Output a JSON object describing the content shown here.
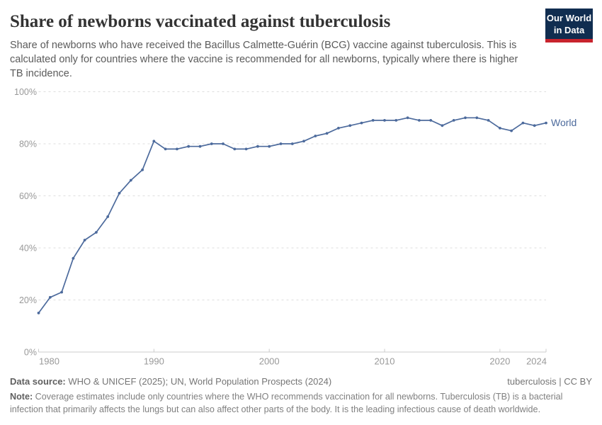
{
  "header": {
    "title": "Share of newborns vaccinated against tuberculosis",
    "subtitle": "Share of newborns who have received the Bacillus Calmette-Guérin (BCG) vaccine against tuberculosis. This is calculated only for countries where the vaccine is recommended for all newborns, typically where there is higher TB incidence.",
    "logo": {
      "line1": "Our World",
      "line2": "in Data",
      "bg_color": "#102D50",
      "accent_color": "#C8232D"
    }
  },
  "chart_data": {
    "type": "line",
    "title": "Share of newborns vaccinated against tuberculosis",
    "xlabel": "",
    "ylabel": "",
    "ylim": [
      0,
      100
    ],
    "yticks": [
      0,
      20,
      40,
      60,
      80,
      100
    ],
    "ytick_suffix": "%",
    "xticks": [
      1980,
      1990,
      2000,
      2010,
      2020,
      2024
    ],
    "grid": "horizontal-dashed",
    "legend": "end-of-line-label",
    "x": [
      1980,
      1981,
      1982,
      1983,
      1984,
      1985,
      1986,
      1987,
      1988,
      1989,
      1990,
      1991,
      1992,
      1993,
      1994,
      1995,
      1996,
      1997,
      1998,
      1999,
      2000,
      2001,
      2002,
      2003,
      2004,
      2005,
      2006,
      2007,
      2008,
      2009,
      2010,
      2011,
      2012,
      2013,
      2014,
      2015,
      2016,
      2017,
      2018,
      2019,
      2020,
      2021,
      2022,
      2023,
      2024
    ],
    "series": [
      {
        "name": "World",
        "color": "#4C6A9C",
        "values": [
          15,
          21,
          23,
          36,
          43,
          46,
          52,
          61,
          66,
          70,
          81,
          78,
          78,
          79,
          79,
          80,
          80,
          78,
          78,
          79,
          79,
          80,
          80,
          81,
          83,
          84,
          86,
          87,
          88,
          89,
          89,
          89,
          90,
          89,
          89,
          87,
          89,
          90,
          90,
          89,
          86,
          85,
          88,
          87,
          88
        ]
      }
    ],
    "style": {
      "grid_color": "#dedede",
      "axis_color": "#cccccc",
      "tick_label_color": "#999999"
    }
  },
  "footer": {
    "data_source_label": "Data source:",
    "data_source": " WHO & UNICEF (2025); UN, World Population Prospects (2024)",
    "rights": "tuberculosis | CC BY",
    "note_label": "Note:",
    "note": " Coverage estimates include only countries where the WHO recommends vaccination for all newborns. Tuberculosis (TB) is a bacterial infection that primarily affects the lungs but can also affect other parts of the body. It is the leading infectious cause of death worldwide."
  }
}
